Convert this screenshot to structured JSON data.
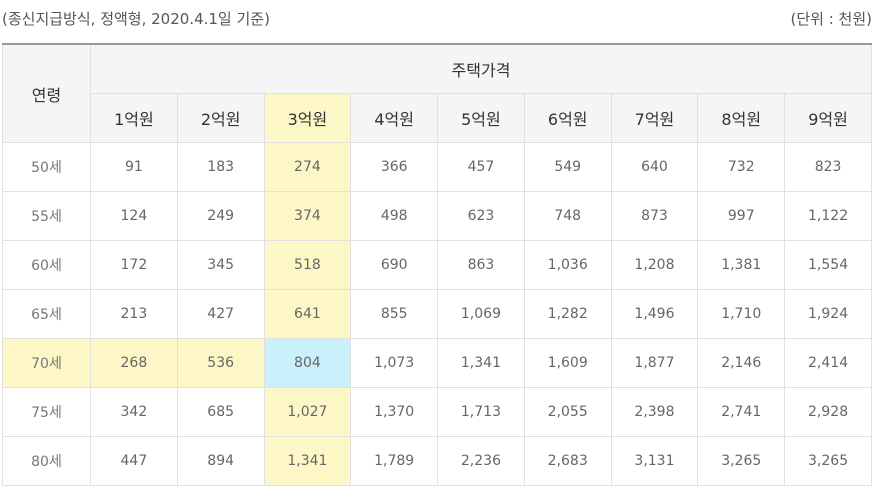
{
  "caption": {
    "left": "(종신지급방식, 정액형, 2020.4.1일 기준)",
    "right": "(단위 : 천원)"
  },
  "table": {
    "age_header": "연령",
    "group_header": "주택가격",
    "price_headers": [
      "1억원",
      "2억원",
      "3억원",
      "4억원",
      "5억원",
      "6억원",
      "7억원",
      "8억원",
      "9억원"
    ],
    "rows": [
      {
        "age": "50세",
        "values": [
          "91",
          "183",
          "274",
          "366",
          "457",
          "549",
          "640",
          "732",
          "823"
        ]
      },
      {
        "age": "55세",
        "values": [
          "124",
          "249",
          "374",
          "498",
          "623",
          "748",
          "873",
          "997",
          "1,122"
        ]
      },
      {
        "age": "60세",
        "values": [
          "172",
          "345",
          "518",
          "690",
          "863",
          "1,036",
          "1,208",
          "1,381",
          "1,554"
        ]
      },
      {
        "age": "65세",
        "values": [
          "213",
          "427",
          "641",
          "855",
          "1,069",
          "1,282",
          "1,496",
          "1,710",
          "1,924"
        ]
      },
      {
        "age": "70세",
        "values": [
          "268",
          "536",
          "804",
          "1,073",
          "1,341",
          "1,609",
          "1,877",
          "2,146",
          "2,414"
        ]
      },
      {
        "age": "75세",
        "values": [
          "342",
          "685",
          "1,027",
          "1,370",
          "1,713",
          "2,055",
          "2,398",
          "2,741",
          "2,928"
        ]
      },
      {
        "age": "80세",
        "values": [
          "447",
          "894",
          "1,341",
          "1,789",
          "2,236",
          "2,683",
          "3,131",
          "3,265",
          "3,265"
        ]
      }
    ],
    "highlight_colors": {
      "column": "#fdf7c8",
      "row": "#fdf7c8",
      "cell": "#c9f0fb"
    }
  }
}
